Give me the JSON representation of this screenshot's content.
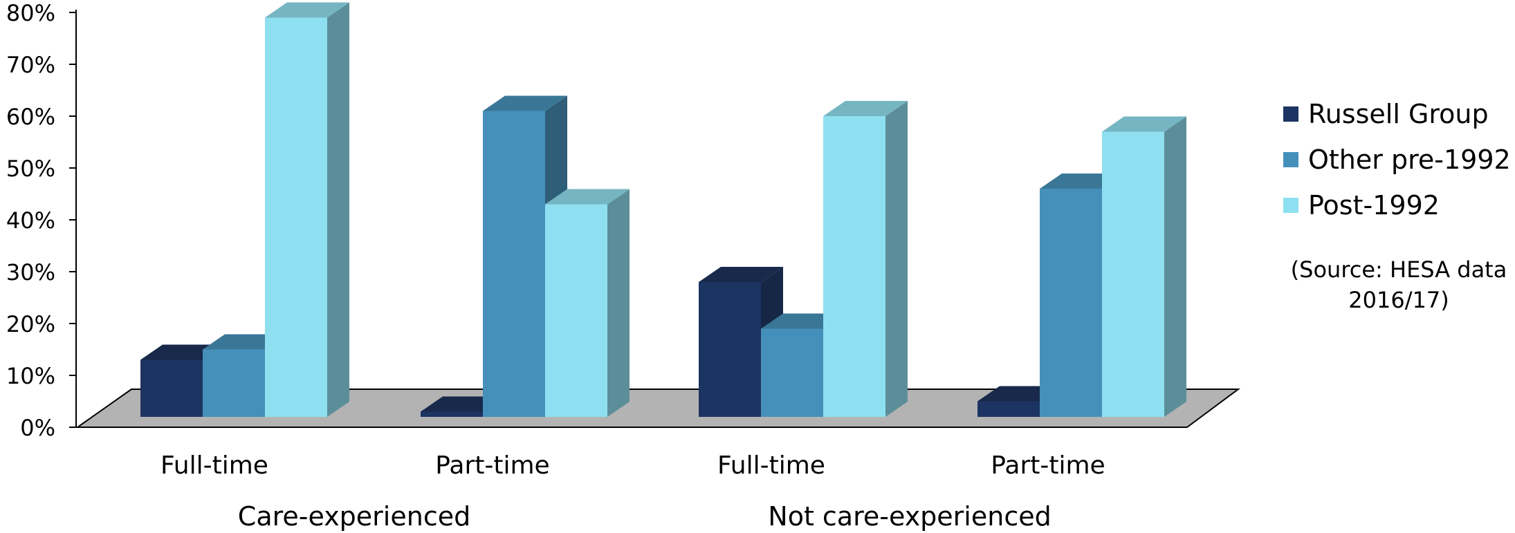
{
  "chart_data": {
    "type": "bar",
    "y_tick_labels": [
      "0%",
      "10%",
      "20%",
      "30%",
      "40%",
      "50%",
      "60%",
      "70%",
      "80%"
    ],
    "ylim": [
      0,
      80
    ],
    "groups": [
      {
        "label": "Care-experienced",
        "categories": [
          "Full-time",
          "Part-time"
        ]
      },
      {
        "label": "Not care-experienced",
        "categories": [
          "Full-time",
          "Part-time"
        ]
      }
    ],
    "categories": [
      "Full-time",
      "Part-time",
      "Full-time",
      "Part-time"
    ],
    "series": [
      {
        "name": "Russell Group",
        "values": [
          11,
          1,
          26,
          3
        ],
        "color": "#1c3461",
        "top": "#18294b",
        "side": "#152745"
      },
      {
        "name": "Other pre-1992",
        "values": [
          13,
          59,
          17,
          44
        ],
        "color": "#4590bb",
        "top": "#3a7797",
        "side": "#2f5e78"
      },
      {
        "name": "Post-1992",
        "values": [
          77,
          41,
          58,
          55
        ],
        "color": "#8ee0f0",
        "top": "#76b5c2",
        "side": "#5c8e99"
      }
    ],
    "legend_position": "right",
    "source_lines": [
      "(Source: HESA data",
      "2016/17)"
    ],
    "floor_color": "#b3b3b3"
  }
}
